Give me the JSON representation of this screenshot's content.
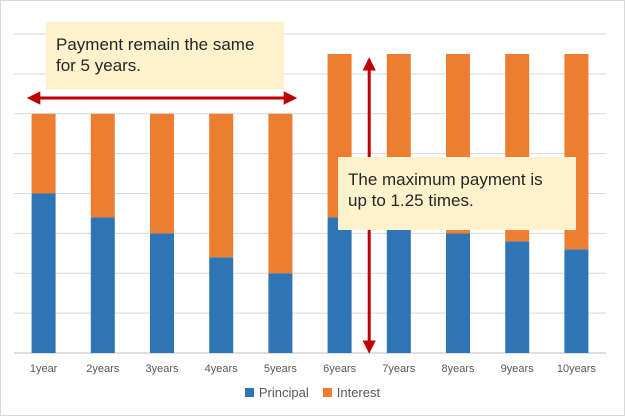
{
  "chart_data": {
    "type": "bar",
    "stacked": true,
    "categories": [
      "1year",
      "2years",
      "3years",
      "4years",
      "5years",
      "6years",
      "7years",
      "8years",
      "9years",
      "10years"
    ],
    "series": [
      {
        "name": "Principal",
        "color": "#2e75b6",
        "values": [
          80,
          68,
          60,
          48,
          40,
          68,
          62,
          60,
          56,
          52
        ]
      },
      {
        "name": "Interest",
        "color": "#ed7d31",
        "values": [
          40,
          52,
          60,
          72,
          80,
          82,
          88,
          90,
          94,
          98
        ]
      }
    ],
    "ylim": [
      0,
      160
    ],
    "y_gridlines": [
      0,
      20,
      40,
      60,
      80,
      100,
      120,
      140,
      160
    ],
    "grid": true,
    "legend_position": "bottom",
    "annotations": [
      {
        "id": "payment_same",
        "text": "Payment remain the same\nfor 5 years.",
        "arrow": "horizontal",
        "arrow_from": "1year",
        "arrow_to": "5years",
        "arrow_color": "#c00000"
      },
      {
        "id": "max_payment",
        "text": "The maximum payment is\nup to 1.25 times.",
        "arrow": "vertical",
        "arrow_at": "6years",
        "arrow_color": "#c00000"
      }
    ]
  }
}
